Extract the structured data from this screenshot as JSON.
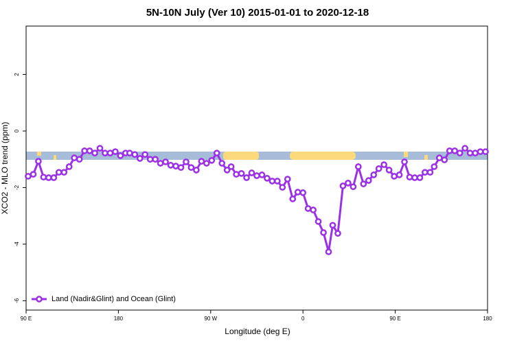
{
  "chart_data": {
    "type": "line",
    "title": "5N-10N July (Ver 10)   2015-01-01 to 2020-12-18",
    "x_label": "Longitude (deg E)",
    "y_label": "XCO2 - MLO trend (ppm)",
    "xlim": [
      90,
      540
    ],
    "ylim": [
      -6.33,
      3.71
    ],
    "xticks": [
      {
        "value": 90,
        "label": "90 E"
      },
      180,
      {
        "value": 270,
        "label": "90 W"
      },
      {
        "value": 360,
        "label": "0"
      },
      {
        "value": 450,
        "label": "90 E"
      },
      {
        "value": 540,
        "label": "180"
      }
    ],
    "yticks": [
      -6,
      -4,
      -2,
      0,
      2
    ],
    "legend": "bottom-left",
    "x": [
      92,
      97,
      102,
      107,
      112,
      117,
      122,
      127,
      132,
      137,
      142,
      147,
      152,
      157,
      162,
      167,
      172,
      177,
      182,
      187,
      191,
      196,
      201,
      206,
      211,
      216,
      221,
      226,
      231,
      236,
      241,
      246,
      251,
      256,
      261,
      266,
      271,
      276,
      281,
      286,
      290,
      295,
      300,
      305,
      310,
      315,
      320,
      325,
      330,
      335,
      340,
      345,
      350,
      355,
      360,
      365,
      370,
      375,
      380,
      385,
      389,
      394,
      399,
      404,
      409,
      414,
      419,
      424,
      429,
      434,
      439,
      444,
      449,
      454,
      459,
      464,
      469,
      474,
      479,
      484,
      488,
      493,
      498,
      503,
      508,
      513,
      518,
      523,
      528,
      533,
      538
    ],
    "series": [
      {
        "name": "Land (Nadir&Glint) and Ocean (Glint)",
        "color": "#9b30e6",
        "values": [
          -1.6,
          -1.53,
          -1.07,
          -1.63,
          -1.65,
          -1.65,
          -1.46,
          -1.46,
          -1.26,
          -0.95,
          -1.0,
          -0.7,
          -0.7,
          -0.78,
          -0.61,
          -0.78,
          -0.78,
          -0.73,
          -0.87,
          -0.78,
          -0.78,
          -0.83,
          -0.97,
          -0.83,
          -1.0,
          -1.0,
          -1.14,
          -1.09,
          -1.21,
          -1.24,
          -1.29,
          -1.09,
          -1.29,
          -1.38,
          -1.07,
          -1.14,
          -1.04,
          -0.78,
          -1.14,
          -1.38,
          -1.26,
          -1.53,
          -1.5,
          -1.65,
          -1.48,
          -1.58,
          -1.55,
          -1.67,
          -1.77,
          -1.77,
          -1.99,
          -1.7,
          -2.4,
          -2.16,
          -2.18,
          -2.74,
          -2.79,
          -3.2,
          -3.59,
          -4.27,
          -3.33,
          -3.62,
          -1.94,
          -1.84,
          -1.97,
          -1.26,
          -1.87,
          -1.75,
          -1.55,
          -1.33,
          -1.19,
          -1.38,
          -1.6,
          -1.55,
          -1.09,
          -1.63,
          -1.65,
          -1.65,
          -1.46,
          -1.46,
          -1.26,
          -0.95,
          -1.02,
          -0.7,
          -0.7,
          -0.78,
          -0.61,
          -0.78,
          -0.78,
          -0.73,
          -0.73
        ]
      }
    ]
  }
}
